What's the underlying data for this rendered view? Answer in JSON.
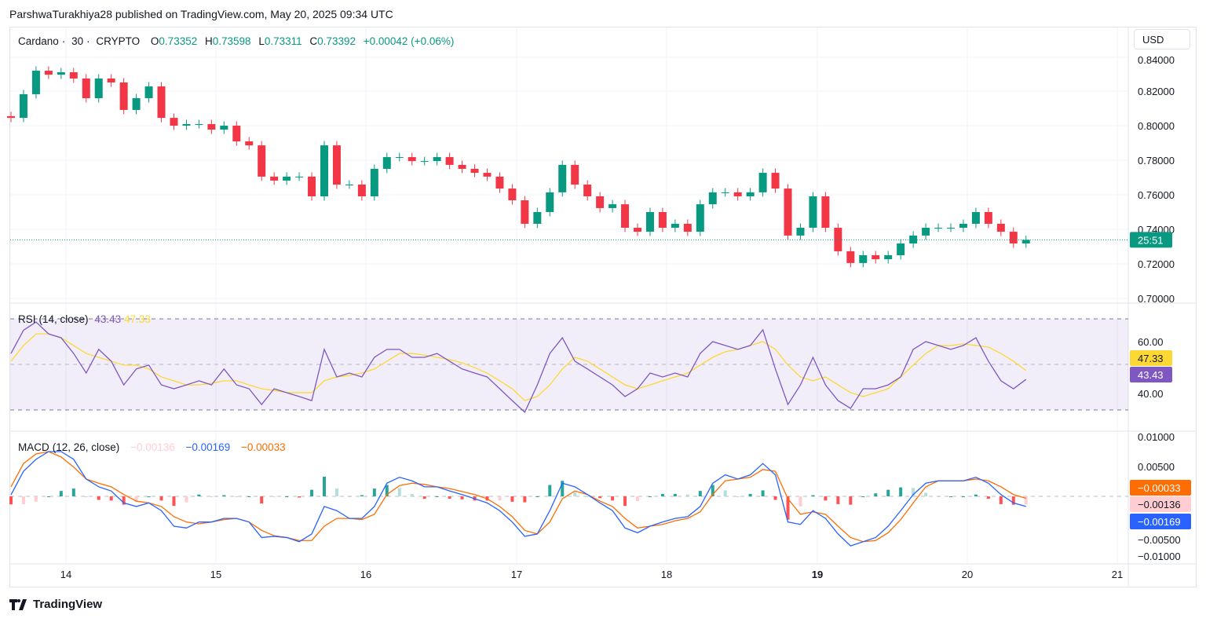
{
  "published": "ParshwaTurakhiya28 published on TradingView.com, May 20, 2025 09:34 UTC",
  "header": {
    "symbol": "Cardano",
    "interval": "30",
    "exchange": "CRYPTO",
    "sep": "·",
    "o_label": "O",
    "o": "0.73352",
    "h_label": "H",
    "h": "0.73598",
    "l_label": "L",
    "l": "0.73311",
    "c_label": "C",
    "c": "0.73392",
    "change": "+0.00042 (+0.06%)"
  },
  "currency_button": "USD",
  "countdown": "25:51",
  "brand": "TradingView",
  "colors": {
    "up": "#089981",
    "down": "#f23645",
    "rsi": "#7e57c2",
    "rsi_ma": "#fdd835",
    "macd": "#2962ff",
    "signal": "#ff6d00",
    "hist_up": "#26a69a",
    "hist_up_light": "#b2dfdb",
    "hist_down": "#ff5252",
    "hist_down_light": "#ffcdd2"
  },
  "chart_data": [
    {
      "type": "candlestick",
      "x_start": "2025-05-13 15:00 UTC",
      "interval_hours": 2,
      "x_tick_labels": [
        "14",
        "15",
        "16",
        "17",
        "18",
        "19",
        "20",
        "21"
      ],
      "y_tick_labels": [
        "0.84000",
        "0.82000",
        "0.80000",
        "0.78000",
        "0.76000",
        "0.74000",
        "0.72000",
        "0.70000"
      ],
      "ylim": [
        0.6977,
        0.8568
      ],
      "current_price": 0.73392,
      "close": [
        0.8045,
        0.8182,
        0.8318,
        0.8295,
        0.8309,
        0.8273,
        0.8159,
        0.8273,
        0.825,
        0.8091,
        0.8159,
        0.8227,
        0.8045,
        0.8,
        0.8009,
        0.8009,
        0.7977,
        0.8,
        0.7909,
        0.7886,
        0.7705,
        0.7682,
        0.7705,
        0.7705,
        0.7591,
        0.7886,
        0.7659,
        0.7659,
        0.7591,
        0.775,
        0.7818,
        0.7818,
        0.7795,
        0.7795,
        0.7818,
        0.7773,
        0.775,
        0.7727,
        0.7705,
        0.7636,
        0.7568,
        0.7432,
        0.75,
        0.7614,
        0.7773,
        0.7659,
        0.7591,
        0.7523,
        0.7545,
        0.7409,
        0.7386,
        0.75,
        0.7409,
        0.7432,
        0.7386,
        0.7545,
        0.7614,
        0.7614,
        0.7591,
        0.7614,
        0.7727,
        0.7636,
        0.7364,
        0.7409,
        0.7591,
        0.7409,
        0.7273,
        0.7205,
        0.725,
        0.7227,
        0.725,
        0.7318,
        0.7364,
        0.7409,
        0.7409,
        0.7409,
        0.7432,
        0.75,
        0.7432,
        0.7386,
        0.7318,
        0.7339
      ]
    },
    {
      "type": "line",
      "legend": {
        "name": "RSI",
        "params": "(14, close)",
        "value": "43.43",
        "ma_value": "47.33"
      },
      "y_tick_labels": [
        "60.00",
        "40.00"
      ],
      "bands": [
        70,
        50,
        30
      ],
      "ylim": [
        19.3,
        74.1
      ],
      "series": [
        {
          "values": [
            54.8,
            65,
            68.6,
            63.4,
            61.7,
            54.8,
            46.2,
            56.6,
            51.4,
            41,
            48,
            49.7,
            41,
            39.3,
            41,
            42.8,
            41,
            48,
            41,
            39.3,
            32.4,
            39.3,
            37.6,
            35.9,
            34.1,
            56.6,
            44.5,
            46.2,
            44.5,
            53.1,
            56.6,
            56.6,
            53.1,
            53.1,
            54.8,
            51.4,
            48,
            46.2,
            44.5,
            39.3,
            34.1,
            29,
            41,
            54.8,
            61.7,
            51.4,
            48,
            44.5,
            41,
            35.9,
            39.3,
            46.2,
            44.5,
            46.2,
            44.5,
            54.8,
            60,
            58.3,
            56.6,
            58.3,
            65.2,
            48,
            32.4,
            41,
            53.1,
            41,
            34.1,
            30.7,
            39.3,
            39.3,
            41,
            44.5,
            56.6,
            60,
            58.3,
            56.6,
            58.3,
            61.7,
            51.4,
            42.8,
            39.3,
            43.43
          ]
        },
        {
          "values": [
            51.4,
            58.3,
            63.4,
            63.4,
            61.7,
            58.3,
            54.8,
            53.1,
            51.4,
            49.7,
            49.7,
            48,
            44.5,
            42.8,
            41,
            41,
            41.7,
            42.8,
            42.8,
            41,
            39.3,
            38.6,
            37.6,
            37.6,
            37.6,
            42.8,
            44.5,
            45.2,
            46.2,
            48,
            51.4,
            54.8,
            54.8,
            54.1,
            53.1,
            52.1,
            50.7,
            48.6,
            46.2,
            42.8,
            39.3,
            34.1,
            35.9,
            41,
            48,
            53.1,
            51.4,
            48,
            44.5,
            41,
            39.3,
            41,
            42.8,
            44.5,
            46.2,
            49.7,
            53.1,
            55.5,
            56.6,
            58.3,
            60,
            56.6,
            49.7,
            44.5,
            42.8,
            44.5,
            41,
            37.6,
            35.9,
            37.6,
            39.3,
            44.5,
            49.7,
            54.8,
            58.3,
            58.3,
            59,
            58.3,
            57.6,
            54.8,
            51.4,
            47.33
          ]
        }
      ]
    },
    {
      "type": "line+bar",
      "legend": {
        "name": "MACD",
        "params": "(12, 26, close)",
        "hist_value": "−0.00136",
        "macd_value": "−0.00169",
        "signal_value": "−0.00033"
      },
      "y_tick_labels": [
        "0.01000",
        "0.00500",
        "−0.00500",
        "−0.01000"
      ],
      "ylim": [
        -0.0113,
        0.0105
      ],
      "series": [
        {
          "values": [
            0.00026,
            0.0042,
            0.0062,
            0.0075,
            0.0075,
            0.0062,
            0.0029,
            0.0016,
            0.0009,
            -0.0011,
            -0.0017,
            -0.0011,
            -0.0024,
            -0.005,
            -0.0053,
            -0.0043,
            -0.0043,
            -0.0037,
            -0.0037,
            -0.0043,
            -0.0069,
            -0.0067,
            -0.0069,
            -0.0076,
            -0.0063,
            -0.0017,
            -0.0024,
            -0.0037,
            -0.0037,
            -0.0017,
            0.0022,
            0.0032,
            0.0026,
            0.0016,
            0.0016,
            0.0009,
            0.0003,
            -0.0004,
            -0.0011,
            -0.0024,
            -0.0043,
            -0.0067,
            -0.0063,
            -0.0024,
            0.0022,
            0.0016,
            0.0003,
            -0.0011,
            -0.0024,
            -0.0053,
            -0.0061,
            -0.005,
            -0.0043,
            -0.0037,
            -0.0034,
            -0.0017,
            0.0022,
            0.0036,
            0.0029,
            0.0036,
            0.0055,
            0.0036,
            -0.0043,
            -0.0047,
            -0.0024,
            -0.0037,
            -0.0063,
            -0.0083,
            -0.0076,
            -0.0069,
            -0.005,
            -0.0024,
            0.0003,
            0.0022,
            0.0026,
            0.0026,
            0.0026,
            0.0032,
            0.0022,
            0.0003,
            -0.0011,
            -0.00169
          ]
        },
        {
          "values": [
            0.0016,
            0.0055,
            0.0071,
            0.0075,
            0.0066,
            0.0049,
            0.0029,
            0.0022,
            0.0016,
            0.0003,
            -0.0008,
            -0.0011,
            -0.0017,
            -0.0034,
            -0.0043,
            -0.0046,
            -0.0043,
            -0.0039,
            -0.0037,
            -0.0043,
            -0.0057,
            -0.0066,
            -0.0069,
            -0.0074,
            -0.0074,
            -0.005,
            -0.0037,
            -0.0037,
            -0.0039,
            -0.003,
            0.0003,
            0.0018,
            0.0022,
            0.002,
            0.0016,
            0.0013,
            0.0008,
            0.0003,
            -0.0004,
            -0.0017,
            -0.0034,
            -0.0057,
            -0.0063,
            -0.0043,
            -0.0004,
            0.0009,
            0.0003,
            -0.0008,
            -0.0017,
            -0.0037,
            -0.0053,
            -0.005,
            -0.0047,
            -0.0041,
            -0.0037,
            -0.0026,
            0.0003,
            0.0026,
            0.0029,
            0.0032,
            0.0045,
            0.0042,
            -0.0004,
            -0.003,
            -0.0026,
            -0.003,
            -0.005,
            -0.0069,
            -0.0076,
            -0.0074,
            -0.0061,
            -0.0039,
            -0.0011,
            0.0016,
            0.0026,
            0.0026,
            0.0026,
            0.0029,
            0.0026,
            0.0016,
            0.0003,
            -0.00033
          ]
        }
      ]
    }
  ]
}
